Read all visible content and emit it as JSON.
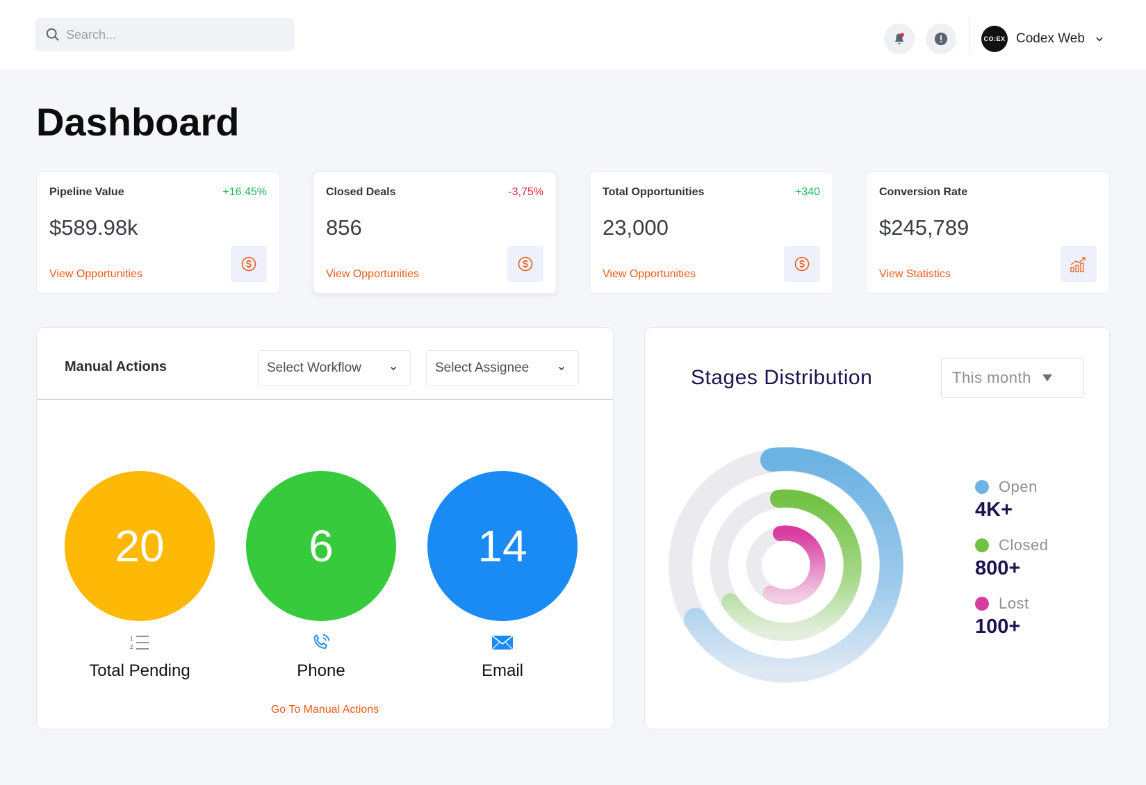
{
  "header": {
    "search_placeholder": "Search...",
    "brand_logo": "CO:EX",
    "brand_name": "Codex Web",
    "notification_dot_color": "#e5253b"
  },
  "page": {
    "title": "Dashboard"
  },
  "stats": [
    {
      "title": "Pipeline Value",
      "delta": "+16.45%",
      "trend": "up",
      "value": "$589.98k",
      "link": "View Opportunities",
      "icon": "dollar-icon"
    },
    {
      "title": "Closed Deals",
      "delta": "-3,75%",
      "trend": "down",
      "value": "856",
      "link": "View Opportunities",
      "icon": "dollar-icon"
    },
    {
      "title": "Total Opportunities",
      "delta": "+340",
      "trend": "up",
      "value": "23,000",
      "link": "View Opportunities",
      "icon": "dollar-icon"
    },
    {
      "title": "Conversion Rate",
      "delta": "",
      "trend": "",
      "value": "$245,789",
      "link": "View Statistics",
      "icon": "growth-chart-icon"
    }
  ],
  "manual_actions": {
    "title": "Manual Actions",
    "workflow_select": "Select Workflow",
    "assignee_select": "Select Assignee",
    "items": [
      {
        "count": "20",
        "label": "Total Pending",
        "color": "#fdb905",
        "icon": "numbered-list-icon"
      },
      {
        "count": "6",
        "label": "Phone",
        "color": "#36ca3c",
        "icon": "phone-icon"
      },
      {
        "count": "14",
        "label": "Email",
        "color": "#1a8af5",
        "icon": "envelope-icon"
      }
    ],
    "link": "Go To Manual Actions"
  },
  "stages": {
    "title": "Stages Distribution",
    "period": "This month",
    "legend": [
      {
        "name": "Open",
        "value": "4K+",
        "color": "#6db3e3"
      },
      {
        "name": "Closed",
        "value": "800+",
        "color": "#72c145"
      },
      {
        "name": "Lost",
        "value": "100+",
        "color": "#d93ca1"
      }
    ]
  }
}
